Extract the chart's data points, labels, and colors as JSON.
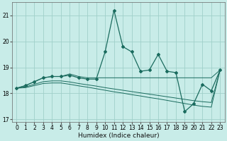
{
  "xlabel": "Humidex (Indice chaleur)",
  "background_color": "#c8ece8",
  "grid_color": "#a0d0ca",
  "line_color": "#1a6b5e",
  "x": [
    0,
    1,
    2,
    3,
    4,
    5,
    6,
    7,
    8,
    9,
    10,
    11,
    12,
    13,
    14,
    15,
    16,
    17,
    18,
    19,
    20,
    21,
    22,
    23
  ],
  "y_main": [
    18.2,
    18.3,
    18.45,
    18.6,
    18.65,
    18.65,
    18.7,
    18.6,
    18.55,
    18.55,
    19.6,
    21.2,
    19.8,
    19.6,
    18.85,
    18.9,
    19.5,
    18.85,
    18.8,
    17.3,
    17.6,
    18.35,
    18.1,
    18.9
  ],
  "y_top": [
    18.2,
    18.3,
    18.45,
    18.6,
    18.65,
    18.65,
    18.75,
    18.65,
    18.6,
    18.6,
    18.6,
    18.6,
    18.6,
    18.6,
    18.6,
    18.6,
    18.6,
    18.6,
    18.6,
    18.6,
    18.6,
    18.6,
    18.6,
    18.9
  ],
  "y_mid": [
    18.2,
    18.25,
    18.35,
    18.45,
    18.48,
    18.48,
    18.44,
    18.38,
    18.33,
    18.28,
    18.22,
    18.17,
    18.12,
    18.07,
    18.02,
    17.97,
    17.92,
    17.87,
    17.82,
    17.77,
    17.72,
    17.68,
    17.65,
    18.9
  ],
  "y_bot": [
    18.2,
    18.22,
    18.3,
    18.38,
    18.4,
    18.4,
    18.35,
    18.29,
    18.24,
    18.18,
    18.12,
    18.06,
    18.01,
    17.95,
    17.9,
    17.84,
    17.79,
    17.73,
    17.67,
    17.61,
    17.55,
    17.5,
    17.47,
    18.9
  ],
  "ylim": [
    16.9,
    21.5
  ],
  "yticks": [
    17,
    18,
    19,
    20,
    21
  ],
  "xticks": [
    0,
    1,
    2,
    3,
    4,
    5,
    6,
    7,
    8,
    9,
    10,
    11,
    12,
    13,
    14,
    15,
    16,
    17,
    18,
    19,
    20,
    21,
    22,
    23
  ]
}
